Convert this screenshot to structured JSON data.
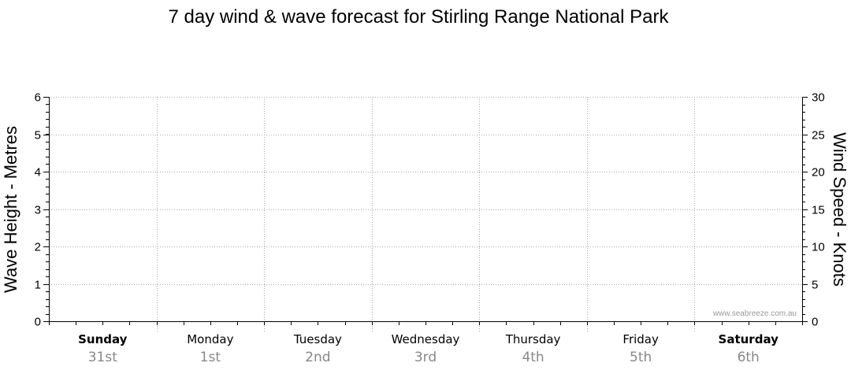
{
  "chart_data": {
    "type": "line",
    "title": "7 day wind & wave forecast for Stirling Range National Park",
    "ylabel": "Wave Height - Metres",
    "y2label": "Wind Speed - Knots",
    "ylim": [
      0,
      6
    ],
    "y2lim": [
      0,
      30
    ],
    "yticks": [
      "0",
      "1",
      "2",
      "3",
      "4",
      "5",
      "6"
    ],
    "y2ticks": [
      "0",
      "5",
      "10",
      "15",
      "20",
      "25",
      "30"
    ],
    "days": [
      {
        "name": "Sunday",
        "date": "31st",
        "bold": true
      },
      {
        "name": "Monday",
        "date": "1st",
        "bold": false
      },
      {
        "name": "Tuesday",
        "date": "2nd",
        "bold": false
      },
      {
        "name": "Wednesday",
        "date": "3rd",
        "bold": false
      },
      {
        "name": "Thursday",
        "date": "4th",
        "bold": false
      },
      {
        "name": "Friday",
        "date": "5th",
        "bold": false
      },
      {
        "name": "Saturday",
        "date": "6th",
        "bold": true
      }
    ],
    "grid": true,
    "series": [],
    "watermark": "www.seabreeze.com.au"
  }
}
